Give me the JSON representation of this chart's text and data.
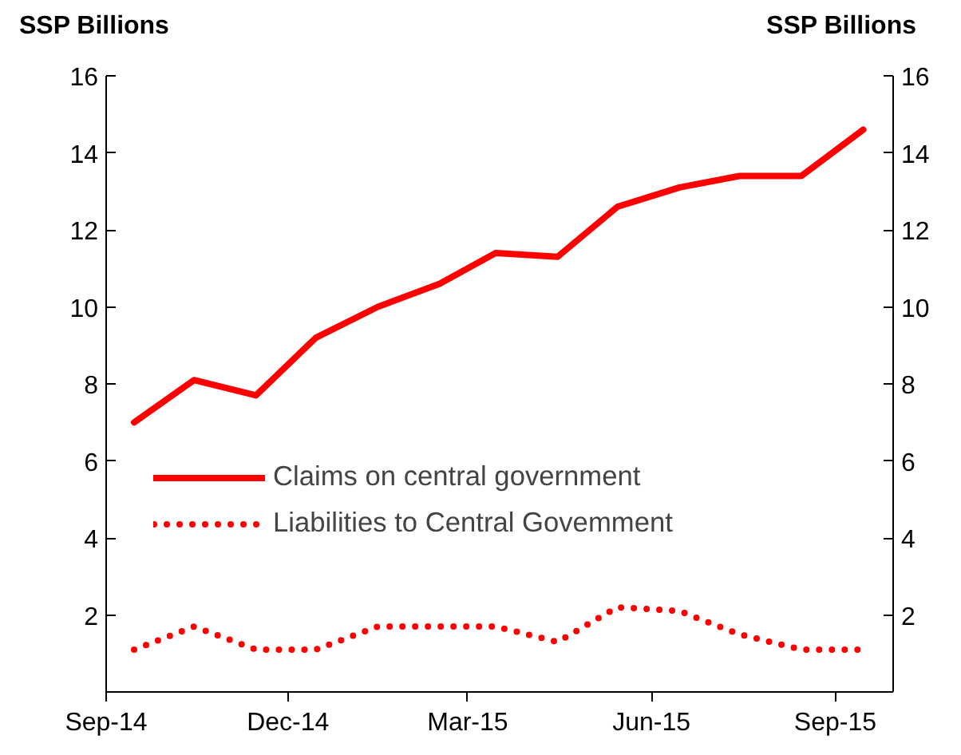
{
  "chart_data": {
    "type": "line",
    "ylabel": "SSP Billions",
    "y2label": "SSP Billions",
    "x": [
      "2014-09-15",
      "2014-10-15",
      "2014-11-15",
      "2014-12-15",
      "2015-01-15",
      "2015-02-15",
      "2015-03-15",
      "2015-04-15",
      "2015-05-15",
      "2015-06-15",
      "2015-07-15",
      "2015-08-15",
      "2015-09-15"
    ],
    "series": [
      {
        "name": "Claims on central government",
        "color": "#ff0000",
        "line_style": "solid",
        "values": [
          7.0,
          8.1,
          7.7,
          9.2,
          10.0,
          10.6,
          11.4,
          11.3,
          12.6,
          13.1,
          13.4,
          13.4,
          14.6
        ]
      },
      {
        "name": "Liabilities to Central Govemment",
        "color": "#ff0000",
        "line_style": "dotted",
        "values": [
          1.1,
          1.7,
          1.1,
          1.1,
          1.7,
          1.7,
          1.7,
          1.3,
          2.2,
          2.1,
          1.5,
          1.1,
          1.1
        ]
      }
    ],
    "xlim": [
      "2014-09-01",
      "2015-09-30"
    ],
    "xticks": [
      {
        "value": "2014-09-01",
        "label": "Sep-14"
      },
      {
        "value": "2014-12-01",
        "label": "Dec-14"
      },
      {
        "value": "2015-03-01",
        "label": "Mar-15"
      },
      {
        "value": "2015-06-01",
        "label": "Jun-15"
      },
      {
        "value": "2015-09-01",
        "label": "Sep-15"
      }
    ],
    "ylim": [
      0,
      16
    ],
    "yticks": [
      {
        "value": 0,
        "label": null
      },
      2,
      4,
      6,
      8,
      10,
      12,
      14,
      16
    ],
    "y2lim": [
      0,
      16
    ],
    "y2ticks": [
      {
        "value": 0,
        "label": null
      },
      2,
      4,
      6,
      8,
      10,
      12,
      14,
      16
    ],
    "grid": false,
    "legend": "left",
    "marker": "none"
  }
}
